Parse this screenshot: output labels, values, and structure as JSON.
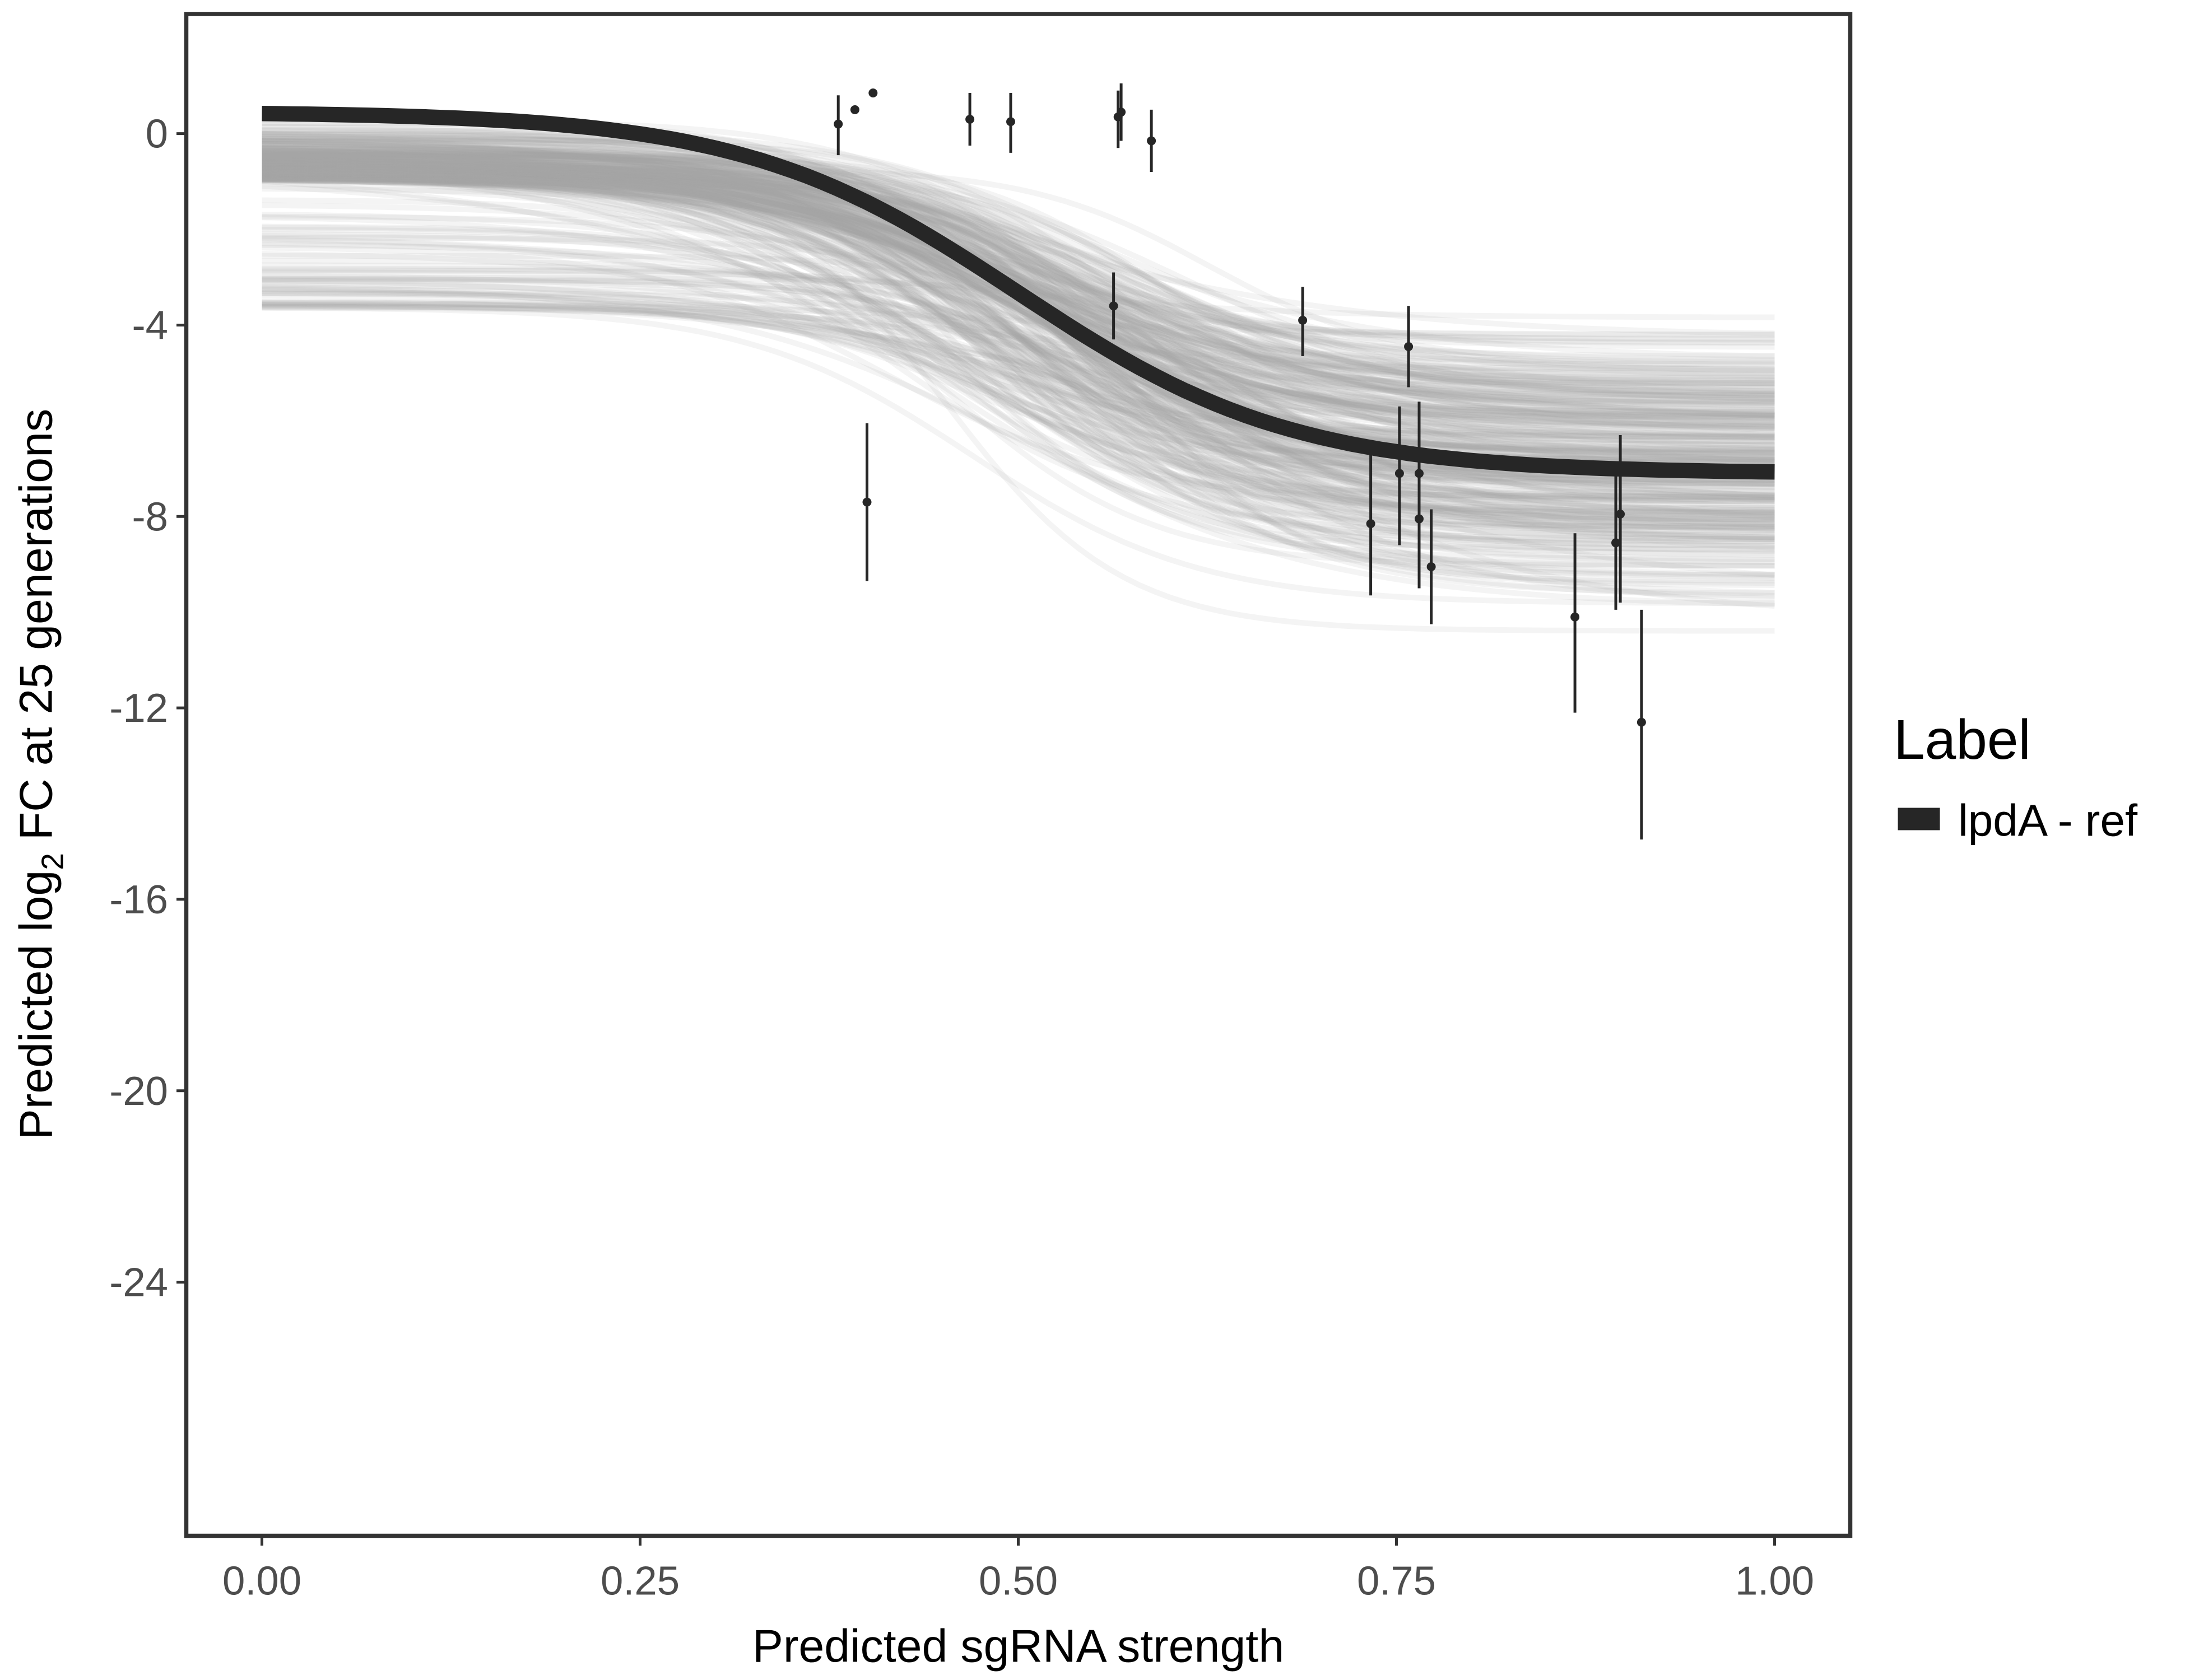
{
  "chart_data": {
    "type": "line",
    "title": "",
    "xlabel": "Predicted sgRNA strength",
    "ylabel_parts": {
      "prefix": "Predicted  log",
      "sub": "2",
      "suffix": " FC at 25 generations"
    },
    "xlim": [
      -0.05,
      1.05
    ],
    "ylim": [
      -29.3,
      2.5
    ],
    "x_ticks": [
      0,
      0.25,
      0.5,
      0.75,
      1.0
    ],
    "x_tick_labels": [
      "0.00",
      "0.25",
      "0.50",
      "0.75",
      "1.00"
    ],
    "y_ticks": [
      0,
      -4,
      -8,
      -12,
      -16,
      -20,
      -24
    ],
    "y_tick_labels": [
      "0",
      "-4",
      "-8",
      "-12",
      "-16",
      "-20",
      "-24"
    ],
    "grid": false,
    "legend": {
      "title": "Label",
      "placement": "right",
      "entries": [
        {
          "label": "lpdA - ref",
          "color": "#262626"
        }
      ]
    },
    "mean_curve": {
      "model": "logistic",
      "top": 0.45,
      "bottom": -7.1,
      "midpoint": 0.5,
      "slope": 11,
      "x_range": [
        0,
        1
      ],
      "color": "#262626"
    },
    "posterior_draws": {
      "count": 300,
      "color": "#a8a8a8",
      "top_range": [
        -4.1,
        0.5
      ],
      "bottom_range": [
        -11.3,
        -2.9
      ],
      "midpoint_range": [
        0.38,
        0.65
      ],
      "slope_range": [
        5,
        20
      ]
    },
    "points": [
      {
        "x": 0.381,
        "y": 0.2,
        "lo": -0.45,
        "hi": 0.8
      },
      {
        "x": 0.392,
        "y": 0.5,
        "lo": 0.5,
        "hi": 0.5
      },
      {
        "x": 0.404,
        "y": 0.85,
        "lo": 0.85,
        "hi": 0.85
      },
      {
        "x": 0.4,
        "y": -7.7,
        "lo": -9.35,
        "hi": -6.05
      },
      {
        "x": 0.468,
        "y": 0.3,
        "lo": -0.25,
        "hi": 0.85
      },
      {
        "x": 0.495,
        "y": 0.25,
        "lo": -0.4,
        "hi": 0.85
      },
      {
        "x": 0.563,
        "y": -3.6,
        "lo": -4.3,
        "hi": -2.9
      },
      {
        "x": 0.566,
        "y": 0.35,
        "lo": -0.3,
        "hi": 0.9
      },
      {
        "x": 0.568,
        "y": 0.45,
        "lo": -0.15,
        "hi": 1.05
      },
      {
        "x": 0.588,
        "y": -0.15,
        "lo": -0.8,
        "hi": 0.5
      },
      {
        "x": 0.688,
        "y": -3.9,
        "lo": -4.65,
        "hi": -3.2
      },
      {
        "x": 0.733,
        "y": -8.15,
        "lo": -9.65,
        "hi": -6.7
      },
      {
        "x": 0.752,
        "y": -7.1,
        "lo": -8.6,
        "hi": -5.7
      },
      {
        "x": 0.758,
        "y": -4.45,
        "lo": -5.3,
        "hi": -3.6
      },
      {
        "x": 0.765,
        "y": -7.1,
        "lo": -8.55,
        "hi": -5.6
      },
      {
        "x": 0.765,
        "y": -8.05,
        "lo": -9.5,
        "hi": -6.6
      },
      {
        "x": 0.773,
        "y": -9.05,
        "lo": -10.25,
        "hi": -7.85
      },
      {
        "x": 0.868,
        "y": -10.1,
        "lo": -12.1,
        "hi": -8.35
      },
      {
        "x": 0.895,
        "y": -8.55,
        "lo": -9.95,
        "hi": -6.95
      },
      {
        "x": 0.898,
        "y": -7.95,
        "lo": -9.8,
        "hi": -6.3
      },
      {
        "x": 0.912,
        "y": -12.3,
        "lo": -14.75,
        "hi": -9.95
      }
    ],
    "point_color": "#262626"
  }
}
